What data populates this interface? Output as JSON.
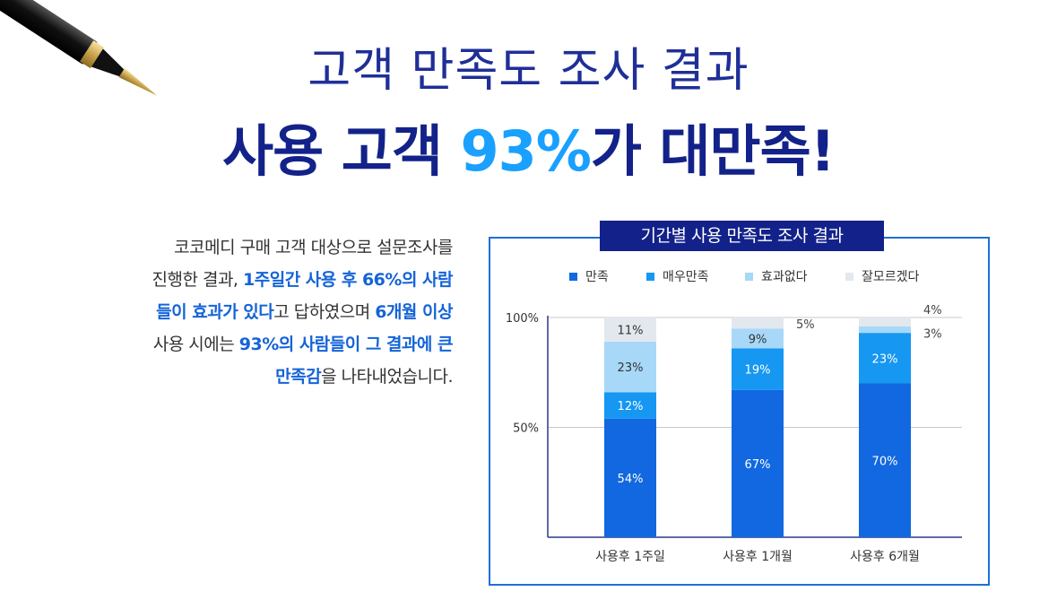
{
  "header": {
    "title_line1": "고객 만족도 조사 결과",
    "title_line2_a": "사용 고객 ",
    "title_line2_hl": "93%",
    "title_line2_b": "가 대만족!"
  },
  "description": {
    "l1": "코코메디 구매 고객 대상으로 설문조사를",
    "l2a": "진행한 결과, ",
    "l2b": "1주일간 사용 후 66%의 사람",
    "l3a": "들이 효과가 있다",
    "l3b": "고 답하였으며 ",
    "l3c": "6개월 이상",
    "l4a": "사용 시에는 ",
    "l4b": "93%의 사람들이 그 결과에 큰",
    "l5a": "만족감",
    "l5b": "을 나타내었습니다."
  },
  "colors": {
    "title_dark": "#13228a",
    "highlight": "#1aa0ff",
    "s1": "#1168e0",
    "s2": "#1597f2",
    "s3": "#a8d8f8",
    "s4": "#e3e8ee"
  },
  "chart_data": {
    "type": "bar",
    "title": "기간별 사용 만족도 조사 결과",
    "categories": [
      "사용후 1주일",
      "사용후 1개월",
      "사용후 6개월"
    ],
    "series": [
      {
        "name": "만족",
        "values": [
          54,
          67,
          70
        ],
        "color": "#1168e0"
      },
      {
        "name": "매우만족",
        "values": [
          12,
          19,
          23
        ],
        "color": "#1597f2"
      },
      {
        "name": "효과없다",
        "values": [
          23,
          9,
          3
        ],
        "color": "#a8d8f8"
      },
      {
        "name": "잘모르겠다",
        "values": [
          11,
          5,
          4
        ],
        "color": "#e3e8ee"
      }
    ],
    "y_ticks": [
      "100%",
      "50%"
    ],
    "ylim": [
      0,
      100
    ],
    "stacked": true,
    "legend_position": "top"
  }
}
